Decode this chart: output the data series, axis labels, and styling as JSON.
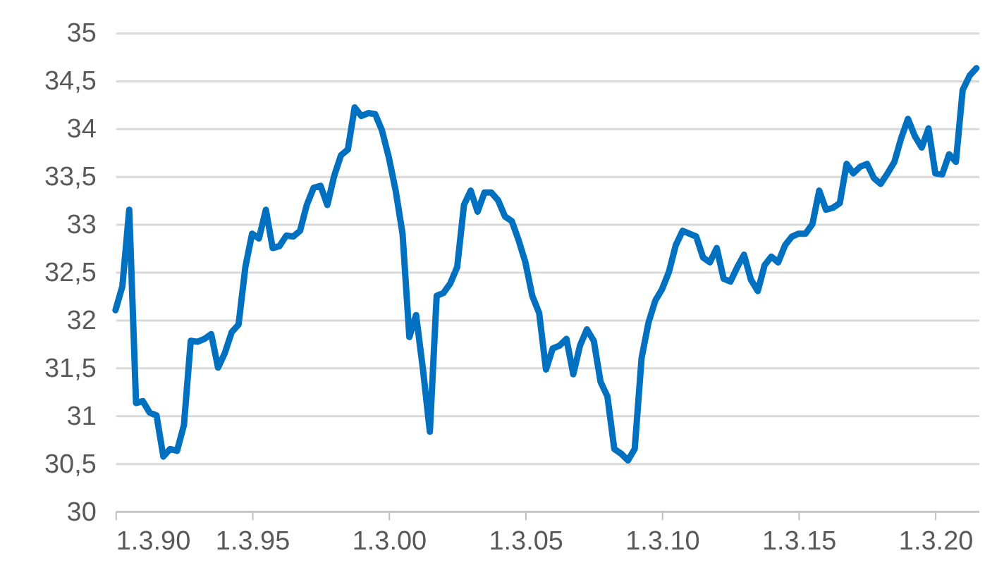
{
  "chart_data": {
    "type": "line",
    "x": [
      "1990-03",
      "1990-06",
      "1990-09",
      "1990-12",
      "1991-03",
      "1991-06",
      "1991-09",
      "1991-12",
      "1992-03",
      "1992-06",
      "1992-09",
      "1992-12",
      "1993-03",
      "1993-06",
      "1993-09",
      "1993-12",
      "1994-03",
      "1994-06",
      "1994-09",
      "1994-12",
      "1995-03",
      "1995-06",
      "1995-09",
      "1995-12",
      "1996-03",
      "1996-06",
      "1996-09",
      "1996-12",
      "1997-03",
      "1997-06",
      "1997-09",
      "1997-12",
      "1998-03",
      "1998-06",
      "1998-09",
      "1998-12",
      "1999-03",
      "1999-06",
      "1999-09",
      "1999-12",
      "2000-03",
      "2000-06",
      "2000-09",
      "2000-12",
      "2001-03",
      "2001-06",
      "2001-09",
      "2001-12",
      "2002-03",
      "2002-06",
      "2002-09",
      "2002-12",
      "2003-03",
      "2003-06",
      "2003-09",
      "2003-12",
      "2004-03",
      "2004-06",
      "2004-09",
      "2004-12",
      "2005-03",
      "2005-06",
      "2005-09",
      "2005-12",
      "2006-03",
      "2006-06",
      "2006-09",
      "2006-12",
      "2007-03",
      "2007-06",
      "2007-09",
      "2007-12",
      "2008-03",
      "2008-06",
      "2008-09",
      "2008-12",
      "2009-03",
      "2009-06",
      "2009-09",
      "2009-12",
      "2010-03",
      "2010-06",
      "2010-09",
      "2010-12",
      "2011-03",
      "2011-06",
      "2011-09",
      "2011-12",
      "2012-03",
      "2012-06",
      "2012-09",
      "2012-12",
      "2013-03",
      "2013-06",
      "2013-09",
      "2013-12",
      "2014-03",
      "2014-06",
      "2014-09",
      "2014-12",
      "2015-03",
      "2015-06",
      "2015-09",
      "2015-12",
      "2016-03",
      "2016-06",
      "2016-09",
      "2016-12",
      "2017-03",
      "2017-06",
      "2017-09",
      "2017-12",
      "2018-03",
      "2018-06",
      "2018-09",
      "2018-12",
      "2019-03",
      "2019-06",
      "2019-09",
      "2019-12",
      "2020-03",
      "2020-06",
      "2020-09",
      "2020-12",
      "2021-03",
      "2021-06",
      "2021-09"
    ],
    "series": [
      {
        "color": "#0070c0",
        "values": [
          32.1,
          32.35,
          33.15,
          31.13,
          31.15,
          31.03,
          31.0,
          30.57,
          30.65,
          30.63,
          30.9,
          31.78,
          31.77,
          31.8,
          31.85,
          31.5,
          31.65,
          31.87,
          31.95,
          32.55,
          32.9,
          32.85,
          33.15,
          32.75,
          32.77,
          32.88,
          32.87,
          32.93,
          33.2,
          33.38,
          33.4,
          33.2,
          33.5,
          33.72,
          33.78,
          34.22,
          34.13,
          34.16,
          34.15,
          33.98,
          33.7,
          33.35,
          32.9,
          31.82,
          32.05,
          31.48,
          30.83,
          32.25,
          32.28,
          32.38,
          32.55,
          33.2,
          33.35,
          33.13,
          33.33,
          33.33,
          33.25,
          33.08,
          33.03,
          32.83,
          32.6,
          32.25,
          32.07,
          31.48,
          31.7,
          31.73,
          31.8,
          31.43,
          31.73,
          31.9,
          31.78,
          31.35,
          31.2,
          30.65,
          30.6,
          30.53,
          30.65,
          31.6,
          31.97,
          32.2,
          32.32,
          32.5,
          32.78,
          32.93,
          32.9,
          32.87,
          32.65,
          32.6,
          32.75,
          32.43,
          32.4,
          32.55,
          32.68,
          32.42,
          32.3,
          32.57,
          32.66,
          32.6,
          32.78,
          32.87,
          32.9,
          32.9,
          33.0,
          33.35,
          33.15,
          33.17,
          33.22,
          33.63,
          33.53,
          33.6,
          33.63,
          33.48,
          33.42,
          33.53,
          33.65,
          33.9,
          34.1,
          33.92,
          33.8,
          34.0,
          33.53,
          33.52,
          33.73,
          33.65,
          34.4,
          34.55,
          34.63
        ]
      }
    ],
    "xlim": [
      "1990-03",
      "2021-10"
    ],
    "xticks": [
      {
        "value": "1990-03-01",
        "label": "1.3.90"
      },
      {
        "value": "1995-03-01",
        "label": "1.3.95"
      },
      {
        "value": "2000-03-01",
        "label": "1.3.00"
      },
      {
        "value": "2005-03-01",
        "label": "1.3.05"
      },
      {
        "value": "2010-03-01",
        "label": "1.3.10"
      },
      {
        "value": "2015-03-01",
        "label": "1.3.15"
      },
      {
        "value": "2020-03-01",
        "label": "1.3.20"
      }
    ],
    "ylim": [
      30,
      35
    ],
    "yticks": [
      30,
      {
        "value": 30.5,
        "label": "30,5"
      },
      31,
      {
        "value": 31.5,
        "label": "31,5"
      },
      32,
      {
        "value": 32.5,
        "label": "32,5"
      },
      33,
      {
        "value": 33.5,
        "label": "33,5"
      },
      34,
      {
        "value": 34.5,
        "label": "34,5"
      },
      35
    ],
    "grid": "y",
    "marker": "none",
    "line_style": "solid"
  }
}
